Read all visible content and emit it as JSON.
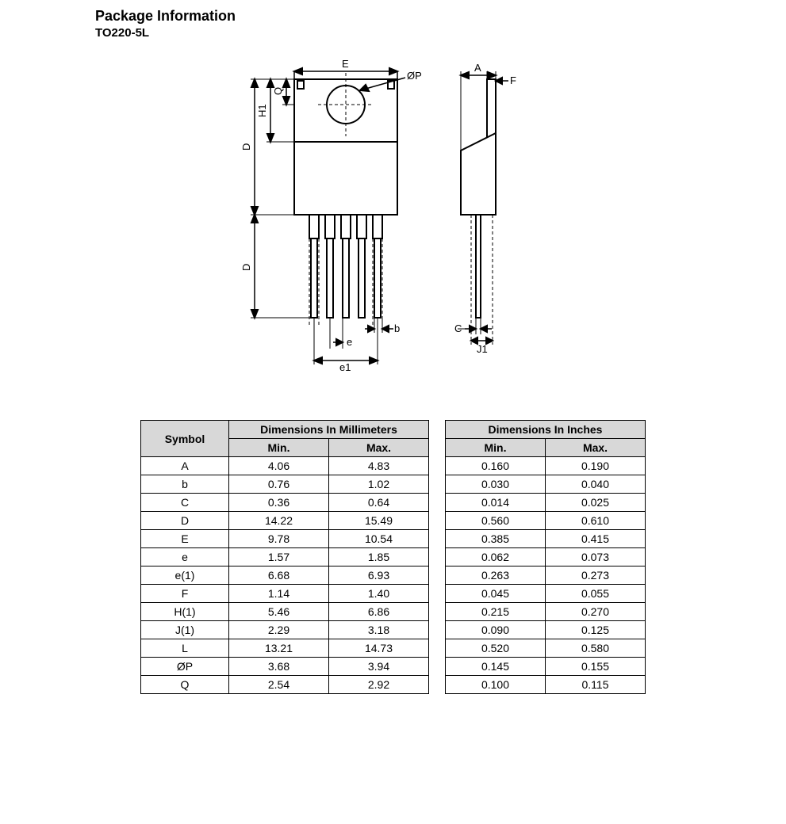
{
  "heading": "Package Information",
  "subheading": "TO220-5L",
  "table": {
    "header_symbol": "Symbol",
    "header_mm": "Dimensions In Millimeters",
    "header_in": "Dimensions In Inches",
    "header_min": "Min.",
    "header_max": "Max.",
    "rows": [
      {
        "sym": "A",
        "mm_min": "4.06",
        "mm_max": "4.83",
        "in_min": "0.160",
        "in_max": "0.190"
      },
      {
        "sym": "b",
        "mm_min": "0.76",
        "mm_max": "1.02",
        "in_min": "0.030",
        "in_max": "0.040"
      },
      {
        "sym": "C",
        "mm_min": "0.36",
        "mm_max": "0.64",
        "in_min": "0.014",
        "in_max": "0.025"
      },
      {
        "sym": "D",
        "mm_min": "14.22",
        "mm_max": "15.49",
        "in_min": "0.560",
        "in_max": "0.610"
      },
      {
        "sym": "E",
        "mm_min": "9.78",
        "mm_max": "10.54",
        "in_min": "0.385",
        "in_max": "0.415"
      },
      {
        "sym": "e",
        "mm_min": "1.57",
        "mm_max": "1.85",
        "in_min": "0.062",
        "in_max": "0.073"
      },
      {
        "sym": "e(1)",
        "mm_min": "6.68",
        "mm_max": "6.93",
        "in_min": "0.263",
        "in_max": "0.273"
      },
      {
        "sym": "F",
        "mm_min": "1.14",
        "mm_max": "1.40",
        "in_min": "0.045",
        "in_max": "0.055"
      },
      {
        "sym": "H(1)",
        "mm_min": "5.46",
        "mm_max": "6.86",
        "in_min": "0.215",
        "in_max": "0.270"
      },
      {
        "sym": "J(1)",
        "mm_min": "2.29",
        "mm_max": "3.18",
        "in_min": "0.090",
        "in_max": "0.125"
      },
      {
        "sym": "L",
        "mm_min": "13.21",
        "mm_max": "14.73",
        "in_min": "0.520",
        "in_max": "0.580"
      },
      {
        "sym": "ØP",
        "mm_min": "3.68",
        "mm_max": "3.94",
        "in_min": "0.145",
        "in_max": "0.155"
      },
      {
        "sym": "Q",
        "mm_min": "2.54",
        "mm_max": "2.92",
        "in_min": "0.100",
        "in_max": "0.115"
      }
    ]
  },
  "diagram": {
    "labels": {
      "E": "E",
      "Q": "Q",
      "H1": "H1",
      "D_upper": "D",
      "D_lower": "D",
      "phiP": "ØP",
      "A": "A",
      "F": "F",
      "C": "C",
      "J1": "J1",
      "e": "e",
      "e1": "e1",
      "b": "b"
    },
    "stroke": "#000000",
    "fill_body": "#ffffff",
    "dash": "4,3"
  }
}
